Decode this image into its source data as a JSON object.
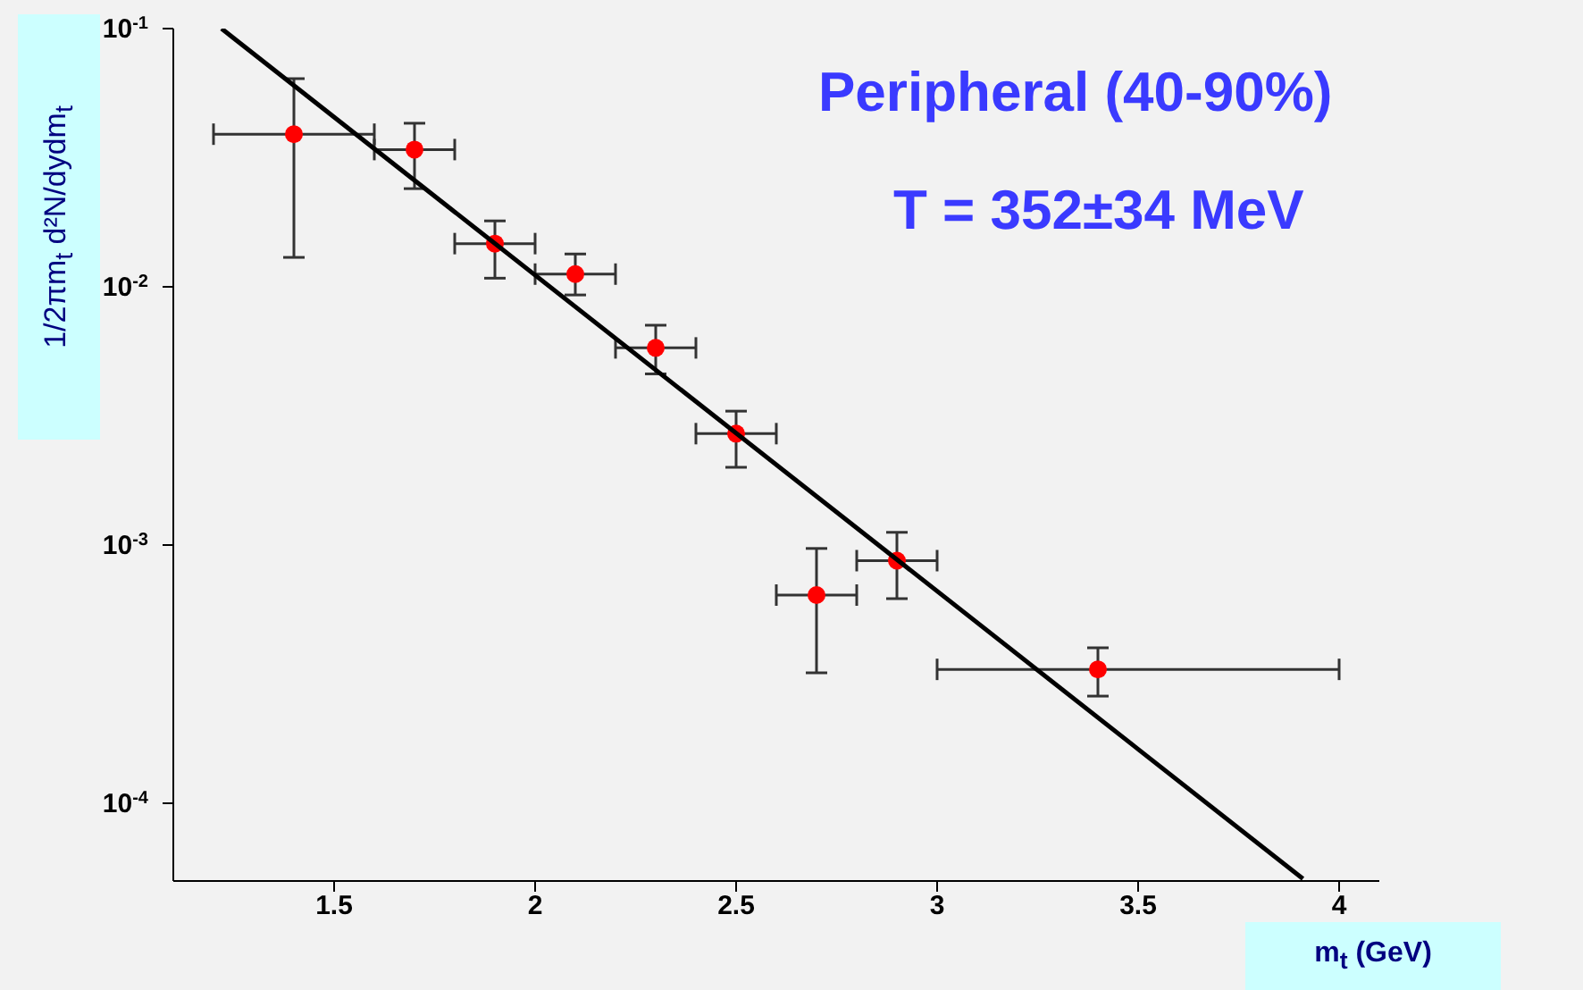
{
  "chart_data": {
    "type": "scatter",
    "xlabel": "m$_{t}$ (GeV)",
    "ylabel": "1/2πm$_{t}$ d²N/dydm$_{t}$",
    "annotations": [
      "Peripheral (40-90%)",
      "T = 352±34 MeV"
    ],
    "log": "y",
    "xlim": [
      1.1,
      4.1
    ],
    "xticks": [
      1.5,
      2,
      2.5,
      3,
      3.5,
      4
    ],
    "ylim": [
      5e-05,
      0.1
    ],
    "yticks": [
      {
        "value": 0.1,
        "label": "10$^{-1}$"
      },
      {
        "value": 0.01,
        "label": "10$^{-2}$"
      },
      {
        "value": 0.001,
        "label": "10$^{-3}$"
      },
      {
        "value": 0.0001,
        "label": "10$^{-4}$"
      }
    ],
    "series": [
      {
        "type": "scatter",
        "color": "#ff0000",
        "marker": "circle",
        "x": [
          1.4,
          1.7,
          1.9,
          2.1,
          2.3,
          2.5,
          2.7,
          2.9,
          3.4
        ],
        "values": [
          0.039,
          0.034,
          0.0147,
          0.0112,
          0.0058,
          0.0027,
          0.00064,
          0.00087,
          0.00033
        ],
        "errors": [
          [
            0.013,
            0.064
          ],
          [
            0.024,
            0.043
          ],
          [
            0.0108,
            0.018
          ],
          [
            0.0093,
            0.0134
          ],
          [
            0.0046,
            0.0071
          ],
          [
            0.002,
            0.0033
          ],
          [
            0.00032,
            0.00097
          ],
          [
            0.00062,
            0.00112
          ],
          [
            0.00026,
            0.0004
          ]
        ],
        "xerrors": [
          [
            1.2,
            1.6
          ],
          [
            1.6,
            1.8
          ],
          [
            1.8,
            2.0
          ],
          [
            2.0,
            2.2
          ],
          [
            2.2,
            2.4
          ],
          [
            2.4,
            2.6
          ],
          [
            2.6,
            2.8
          ],
          [
            2.8,
            3.0
          ],
          [
            3.0,
            4.0
          ]
        ]
      },
      {
        "type": "line",
        "color": "#000000",
        "marker": "none",
        "x": [
          1.22,
          3.91
        ],
        "values": [
          0.1,
          5.1e-05
        ]
      }
    ]
  }
}
